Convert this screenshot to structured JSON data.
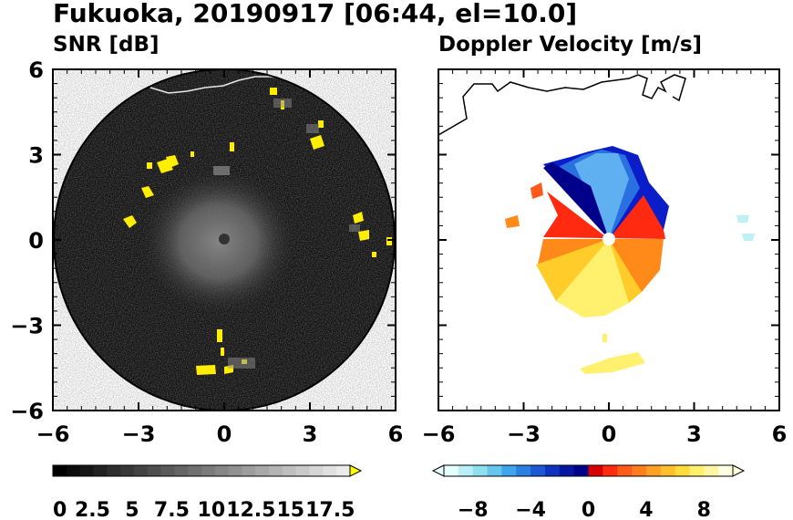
{
  "figure": {
    "title": "Fukuoka, 20190917 [06:44, el=10.0]"
  },
  "chart_data": [
    {
      "type": "heatmap",
      "title": "SNR [dB]",
      "xlim": [
        -6,
        6
      ],
      "ylim": [
        -6,
        6
      ],
      "xticks": [
        "−6",
        "−3",
        "0",
        "3",
        "6"
      ],
      "yticks": [
        "6",
        "3",
        "0",
        "−3",
        "−6"
      ],
      "colorbar": {
        "range": [
          0,
          18.75
        ],
        "tick_labels": [
          "0",
          "2.5",
          "5",
          "7.5",
          "10",
          "12.5",
          "15",
          "17.5"
        ],
        "colors": [
          "#000000",
          "#ffff00"
        ],
        "extend": "max"
      },
      "features": [
        "dark radar disk radius ~6",
        "clutter echoes (yellow) near edge",
        "coastline upper edge"
      ]
    },
    {
      "type": "heatmap",
      "title": "Doppler Velocity [m/s]",
      "xlim": [
        -6,
        6
      ],
      "ylim": [
        -6,
        6
      ],
      "xticks": [
        "−6",
        "−3",
        "0",
        "3",
        "6"
      ],
      "yticks": [],
      "colorbar": {
        "range": [
          -10,
          10
        ],
        "tick_labels": [
          "−8",
          "−4",
          "0",
          "4",
          "8"
        ],
        "colors": [
          "#e6ffff",
          "#00008b",
          "#ff0000",
          "#ffffe0"
        ],
        "extend": "both"
      },
      "features": [
        "approaching (blue) north-east",
        "receding (red/yellow) south-west",
        "coastline upper-left"
      ]
    }
  ]
}
